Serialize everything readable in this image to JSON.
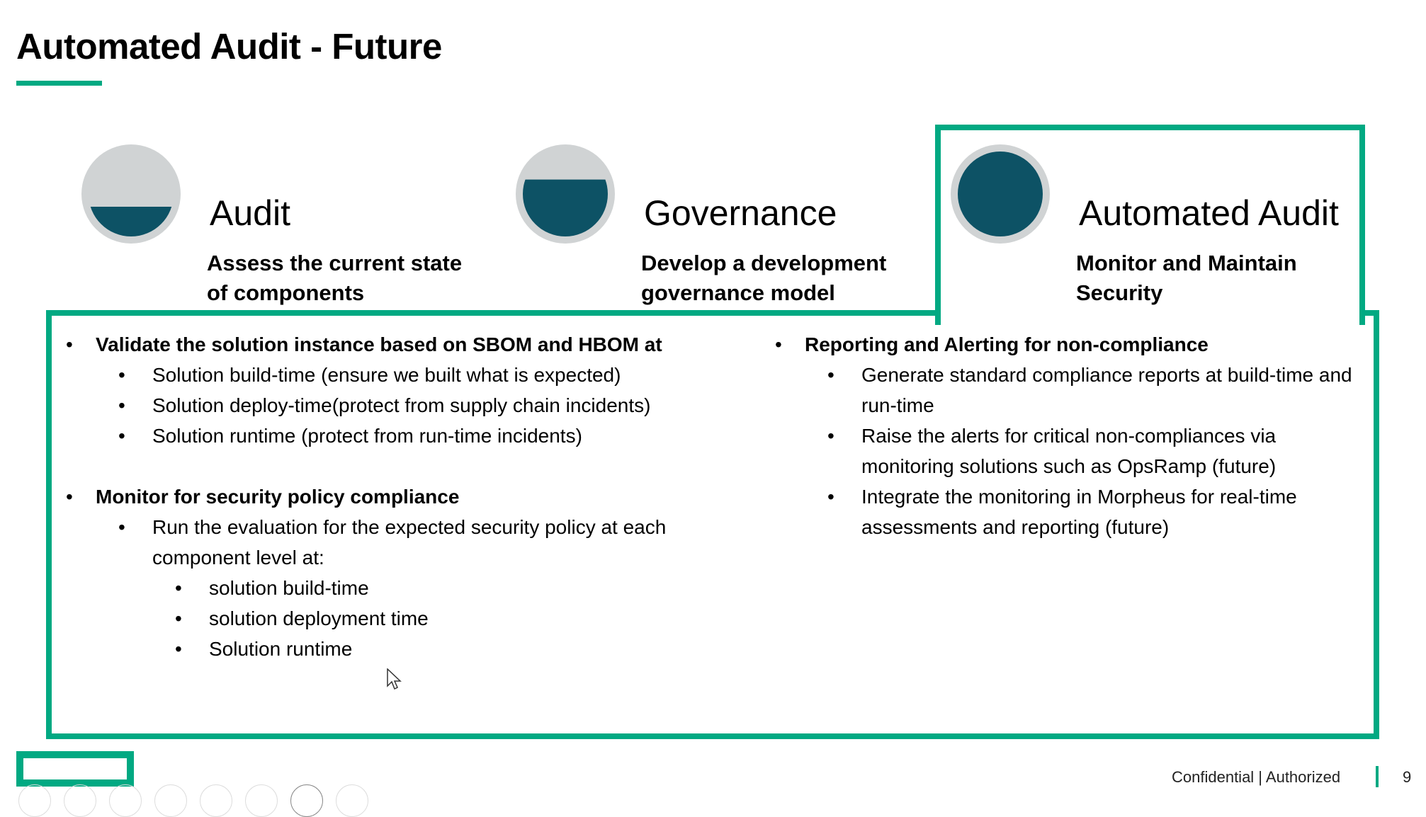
{
  "title": "Automated Audit - Future",
  "colors": {
    "accent": "#01a982",
    "circle_fill": "#0d5265",
    "circle_ring": "#d0d3d4"
  },
  "pillars": [
    {
      "name": "Audit",
      "subtitle_lines": [
        "Assess the current state",
        "of components"
      ],
      "fill_level": 0.35
    },
    {
      "name": "Governance",
      "subtitle_lines": [
        "Develop a development",
        "governance model"
      ],
      "fill_level": 0.67
    },
    {
      "name": "Automated Audit",
      "subtitle_lines": [
        "Monitor and Maintain",
        "Security"
      ],
      "fill_level": 1.0,
      "highlighted": true
    }
  ],
  "left_column": [
    {
      "text": "Validate the solution instance based on SBOM and HBOM at",
      "items": [
        {
          "text": "Solution build-time (ensure we built what is expected)"
        },
        {
          "text": "Solution deploy-time(protect from supply chain incidents)"
        },
        {
          "text": "Solution runtime (protect from run-time incidents)"
        }
      ]
    },
    {
      "text": "Monitor for security policy compliance",
      "items": [
        {
          "text": "Run the evaluation for the expected security policy at each component level at:",
          "items": [
            "solution build-time",
            "solution deployment time",
            "Solution runtime"
          ]
        }
      ]
    }
  ],
  "right_column": [
    {
      "text": "Reporting and Alerting for non-compliance",
      "items": [
        "Generate standard compliance reports at build-time and run-time",
        "Raise the alerts for critical non-compliances via monitoring solutions such as OpsRamp (future)",
        "Integrate the monitoring in Morpheus for real-time assessments and reporting (future)"
      ]
    }
  ],
  "footer": {
    "classification": "Confidential | Authorized",
    "page_number": "9"
  }
}
